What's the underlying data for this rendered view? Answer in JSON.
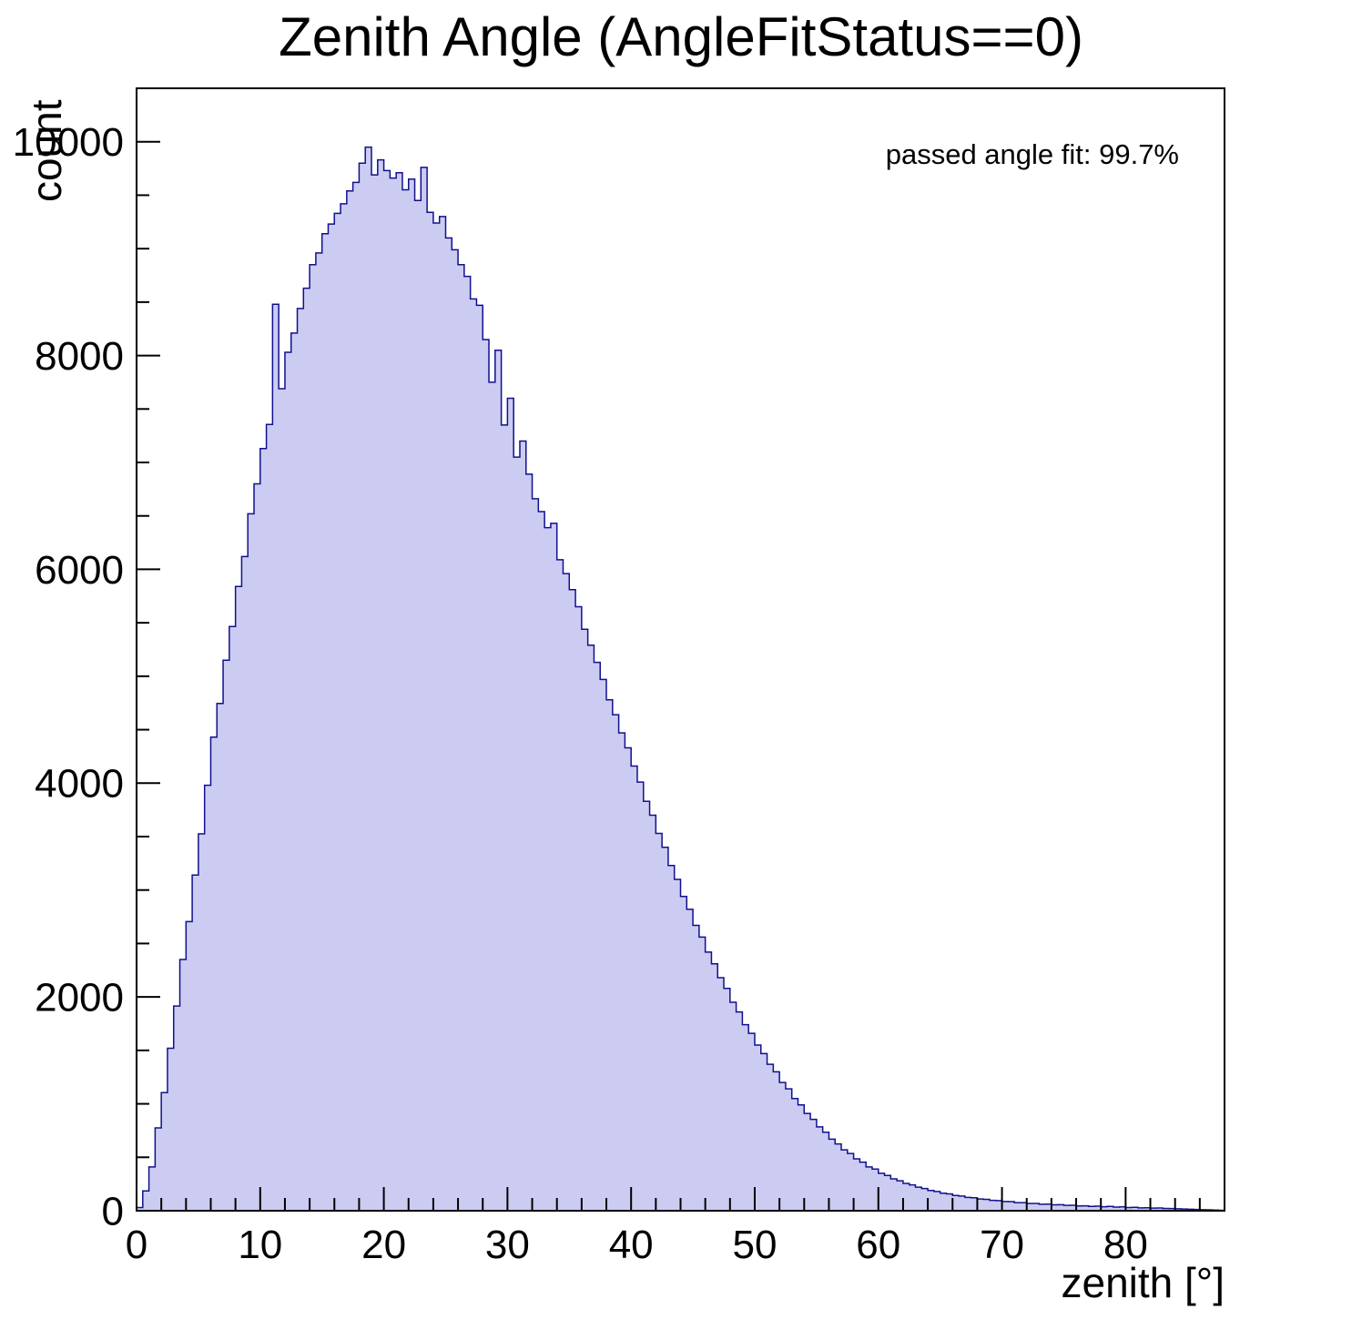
{
  "page": {
    "background": "#ffffff"
  },
  "chart_data": {
    "type": "bar",
    "style": "histogram-step-filled",
    "title": "Zenith Angle (AngleFitStatus==0)",
    "xlabel": "zenith [°]",
    "ylabel": "count",
    "annotation": "passed angle fit: 99.7%",
    "xlim": [
      0,
      88
    ],
    "ylim": [
      0,
      10500
    ],
    "x_start": 0,
    "bin_width": 0.5,
    "x_ticks": [
      0,
      10,
      20,
      30,
      40,
      50,
      60,
      70,
      80
    ],
    "x_tick_labels": [
      "0",
      "10",
      "20",
      "30",
      "40",
      "50",
      "60",
      "70",
      "80"
    ],
    "x_minor_step": 2,
    "y_ticks": [
      0,
      2000,
      4000,
      6000,
      8000,
      10000
    ],
    "y_tick_labels": [
      "0",
      "2000",
      "4000",
      "6000",
      "8000",
      "10000"
    ],
    "y_minor_step": 500,
    "grid": false,
    "legend_position": "none",
    "fill_color": "#ccccf2",
    "line_color": "#10108e",
    "frame_color": "#000000",
    "values": [
      30,
      185,
      410,
      775,
      1105,
      1520,
      1915,
      2350,
      2705,
      3140,
      3525,
      3980,
      4430,
      4745,
      5150,
      5465,
      5840,
      6120,
      6520,
      6800,
      7130,
      7355,
      8480,
      7690,
      8030,
      8210,
      8440,
      8630,
      8850,
      8960,
      9140,
      9230,
      9330,
      9420,
      9540,
      9620,
      9800,
      9950,
      9690,
      9830,
      9730,
      9660,
      9710,
      9550,
      9650,
      9450,
      9760,
      9340,
      9240,
      9300,
      9100,
      8990,
      8850,
      8740,
      8530,
      8470,
      8150,
      7750,
      8050,
      7350,
      7600,
      7050,
      7200,
      6890,
      6660,
      6540,
      6390,
      6430,
      6090,
      5960,
      5810,
      5650,
      5440,
      5290,
      5130,
      4970,
      4780,
      4640,
      4470,
      4330,
      4160,
      4010,
      3830,
      3700,
      3530,
      3400,
      3230,
      3100,
      2940,
      2820,
      2670,
      2560,
      2420,
      2310,
      2180,
      2080,
      1950,
      1860,
      1740,
      1660,
      1550,
      1470,
      1370,
      1300,
      1200,
      1140,
      1050,
      990,
      910,
      855,
      785,
      735,
      670,
      625,
      570,
      535,
      485,
      455,
      410,
      390,
      350,
      330,
      298,
      280,
      255,
      242,
      220,
      208,
      190,
      180,
      164,
      157,
      143,
      137,
      125,
      121,
      110,
      107,
      97,
      95,
      86,
      85,
      76,
      76,
      68,
      68,
      61,
      62,
      55,
      56,
      50,
      51,
      45,
      46,
      41,
      43,
      37,
      40,
      34,
      36,
      30,
      32,
      27,
      28,
      24,
      25,
      21,
      20,
      18,
      16,
      14,
      12,
      10,
      8,
      6,
      4
    ]
  }
}
